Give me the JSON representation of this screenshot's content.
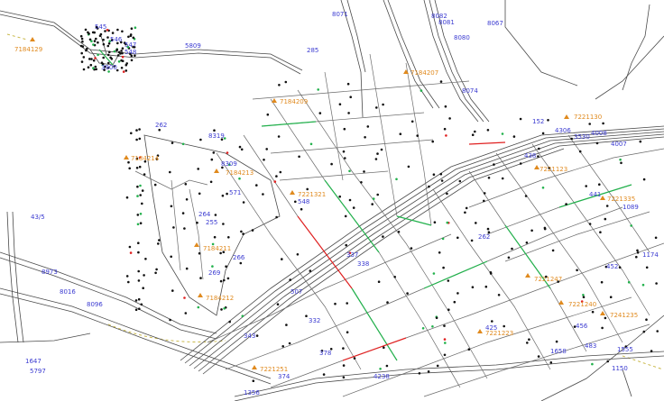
{
  "map": {
    "colors": {
      "background": "#ffffff",
      "road": "#4a4a4a",
      "road_light": "#9a9a9a",
      "node": "#111111",
      "segment_green": "#22b14c",
      "segment_red": "#e02020",
      "label_blue": "#3b3bd1",
      "label_orange": "#e08a1e",
      "dashed_trail": "#c9b84a"
    },
    "blue_labels": [
      {
        "id": "b1",
        "text": "545"
      },
      {
        "id": "b2",
        "text": "546"
      },
      {
        "id": "b3",
        "text": "547"
      },
      {
        "id": "b4",
        "text": "548"
      },
      {
        "id": "b5",
        "text": "3900"
      },
      {
        "id": "b6",
        "text": "5809"
      },
      {
        "id": "b7",
        "text": "8071"
      },
      {
        "id": "b8",
        "text": "8082"
      },
      {
        "id": "b9",
        "text": "8081"
      },
      {
        "id": "b10",
        "text": "8067"
      },
      {
        "id": "b11",
        "text": "8080"
      },
      {
        "id": "b12",
        "text": "285"
      },
      {
        "id": "b13",
        "text": "8074"
      },
      {
        "id": "b14",
        "text": "262"
      },
      {
        "id": "b15",
        "text": "8319"
      },
      {
        "id": "b16",
        "text": "8309"
      },
      {
        "id": "b17",
        "text": "152"
      },
      {
        "id": "b18",
        "text": "4306"
      },
      {
        "id": "b19",
        "text": "4008"
      },
      {
        "id": "b20",
        "text": "3530"
      },
      {
        "id": "b21",
        "text": "4007"
      },
      {
        "id": "b22",
        "text": "438"
      },
      {
        "id": "b23",
        "text": "441"
      },
      {
        "id": "b24",
        "text": "1089"
      },
      {
        "id": "b25",
        "text": "264"
      },
      {
        "id": "b26",
        "text": "255"
      },
      {
        "id": "b27",
        "text": "266"
      },
      {
        "id": "b28",
        "text": "269"
      },
      {
        "id": "b29",
        "text": "43/5"
      },
      {
        "id": "b30",
        "text": "8973"
      },
      {
        "id": "b31",
        "text": "8016"
      },
      {
        "id": "b32",
        "text": "8096"
      },
      {
        "id": "b33",
        "text": "1647"
      },
      {
        "id": "b34",
        "text": "5797"
      },
      {
        "id": "b35",
        "text": "452"
      },
      {
        "id": "b36",
        "text": "1356"
      },
      {
        "id": "b37",
        "text": "374"
      },
      {
        "id": "b38",
        "text": "338"
      },
      {
        "id": "b39",
        "text": "337"
      },
      {
        "id": "b40",
        "text": "262"
      },
      {
        "id": "b41",
        "text": "456"
      },
      {
        "id": "b42",
        "text": "483"
      },
      {
        "id": "b43",
        "text": "1555"
      },
      {
        "id": "b44",
        "text": "1174"
      },
      {
        "id": "b45",
        "text": "1150"
      },
      {
        "id": "b46",
        "text": "1658"
      },
      {
        "id": "b47",
        "text": "332"
      },
      {
        "id": "b48",
        "text": "507"
      },
      {
        "id": "b49",
        "text": "343"
      },
      {
        "id": "b50",
        "text": "378"
      },
      {
        "id": "b51",
        "text": "4238"
      },
      {
        "id": "b52",
        "text": "425"
      },
      {
        "id": "b53",
        "text": "571"
      },
      {
        "id": "b54",
        "text": "548"
      }
    ],
    "orange_labels": [
      {
        "id": "o1",
        "text": "7184129"
      },
      {
        "id": "o2",
        "text": "7221130"
      },
      {
        "id": "o3",
        "text": "7184214"
      },
      {
        "id": "o4",
        "text": "7184213"
      },
      {
        "id": "o5",
        "text": "7221123"
      },
      {
        "id": "o6",
        "text": "7221335"
      },
      {
        "id": "o7",
        "text": "7184211"
      },
      {
        "id": "o8",
        "text": "7184212"
      },
      {
        "id": "o9",
        "text": "7221321"
      },
      {
        "id": "o10",
        "text": "7221247"
      },
      {
        "id": "o11",
        "text": "7221240"
      },
      {
        "id": "o12",
        "text": "7241235"
      },
      {
        "id": "o13",
        "text": "7184207"
      },
      {
        "id": "o14",
        "text": "7221251"
      },
      {
        "id": "o15",
        "text": "7184209"
      },
      {
        "id": "o16",
        "text": "7221223"
      }
    ]
  }
}
